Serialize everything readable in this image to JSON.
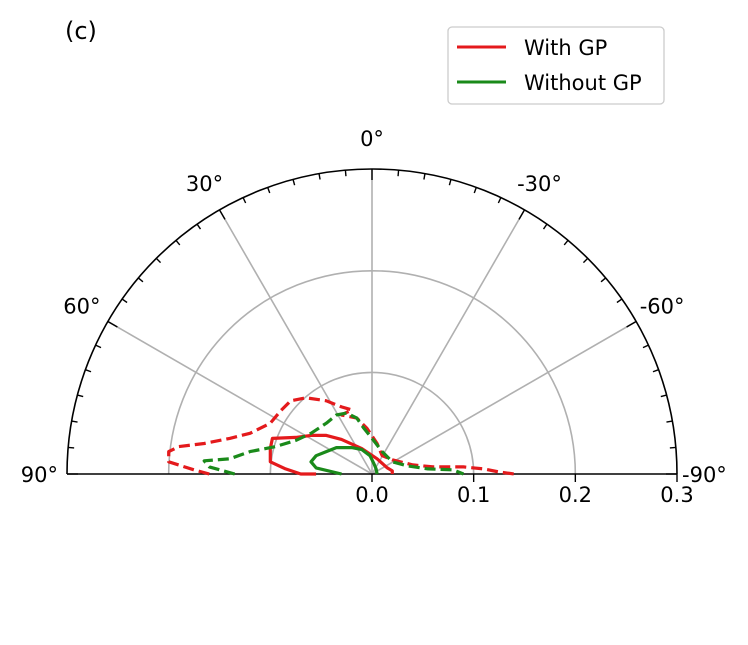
{
  "panel_label": "(c)",
  "chart_data": {
    "type": "polar-line",
    "angle_unit": "degrees",
    "theta_range": [
      90,
      -90
    ],
    "theta_zero": "top",
    "r_range": [
      0,
      0.3
    ],
    "r_ticks": [
      0.0,
      0.1,
      0.2,
      0.3
    ],
    "r_tick_labels": [
      "0.0",
      "0.1",
      "0.2",
      "0.3"
    ],
    "theta_ticks": [
      90,
      60,
      30,
      0,
      -30,
      -60,
      -90
    ],
    "theta_tick_labels": [
      "90°",
      "60°",
      "30°",
      "0°",
      "-30°",
      "-60°",
      "-90°"
    ],
    "grid": true,
    "legend_position": "top-right",
    "legend": [
      {
        "label": "With GP",
        "color": "#e41a1c"
      },
      {
        "label": "Without GP",
        "color": "#1a8a1a"
      }
    ],
    "series": [
      {
        "name": "With GP",
        "style": "solid",
        "color": "#e41a1c",
        "points": [
          [
            -0.055,
            0.0
          ],
          [
            -0.07,
            0.0
          ],
          [
            -0.085,
            0.005
          ],
          [
            -0.1,
            0.012
          ],
          [
            -0.1,
            0.025
          ],
          [
            -0.098,
            0.035
          ],
          [
            -0.075,
            0.036
          ],
          [
            -0.06,
            0.038
          ],
          [
            -0.045,
            0.038
          ],
          [
            -0.03,
            0.034
          ],
          [
            -0.01,
            0.025
          ],
          [
            0.005,
            0.015
          ],
          [
            0.015,
            0.006
          ],
          [
            0.02,
            0.003
          ],
          [
            0.02,
            0.0
          ]
        ]
      },
      {
        "name": "With GP",
        "style": "dashed",
        "color": "#e41a1c",
        "points": [
          [
            -0.16,
            0.0
          ],
          [
            -0.175,
            0.004
          ],
          [
            -0.2,
            0.012
          ],
          [
            -0.2,
            0.022
          ],
          [
            -0.19,
            0.027
          ],
          [
            -0.165,
            0.03
          ],
          [
            -0.14,
            0.035
          ],
          [
            -0.12,
            0.04
          ],
          [
            -0.1,
            0.05
          ],
          [
            -0.09,
            0.062
          ],
          [
            -0.08,
            0.072
          ],
          [
            -0.065,
            0.075
          ],
          [
            -0.045,
            0.072
          ],
          [
            -0.03,
            0.066
          ],
          [
            -0.02,
            0.063
          ],
          [
            -0.03,
            0.058
          ],
          [
            -0.015,
            0.055
          ],
          [
            -0.005,
            0.045
          ],
          [
            0.005,
            0.03
          ],
          [
            0.01,
            0.018
          ],
          [
            0.02,
            0.014
          ],
          [
            0.04,
            0.009
          ],
          [
            0.06,
            0.007
          ],
          [
            0.09,
            0.007
          ],
          [
            0.11,
            0.005
          ],
          [
            0.125,
            0.002
          ],
          [
            0.14,
            0.0
          ]
        ]
      },
      {
        "name": "Without GP",
        "style": "solid",
        "color": "#1a8a1a",
        "points": [
          [
            -0.03,
            0.0
          ],
          [
            -0.055,
            0.006
          ],
          [
            -0.06,
            0.012
          ],
          [
            -0.055,
            0.018
          ],
          [
            -0.045,
            0.022
          ],
          [
            -0.035,
            0.026
          ],
          [
            -0.02,
            0.026
          ],
          [
            -0.01,
            0.024
          ],
          [
            -0.002,
            0.018
          ],
          [
            0.002,
            0.01
          ],
          [
            0.004,
            0.005
          ],
          [
            0.005,
            0.0
          ]
        ]
      },
      {
        "name": "Without GP",
        "style": "dashed",
        "color": "#1a8a1a",
        "points": [
          [
            -0.135,
            0.0
          ],
          [
            -0.16,
            0.007
          ],
          [
            -0.165,
            0.013
          ],
          [
            -0.14,
            0.015
          ],
          [
            -0.12,
            0.022
          ],
          [
            -0.095,
            0.027
          ],
          [
            -0.075,
            0.033
          ],
          [
            -0.06,
            0.04
          ],
          [
            -0.045,
            0.05
          ],
          [
            -0.035,
            0.058
          ],
          [
            -0.025,
            0.06
          ],
          [
            -0.015,
            0.055
          ],
          [
            -0.008,
            0.045
          ],
          [
            0.0,
            0.035
          ],
          [
            0.01,
            0.022
          ],
          [
            0.02,
            0.012
          ],
          [
            0.035,
            0.008
          ],
          [
            0.055,
            0.005
          ],
          [
            0.08,
            0.004
          ],
          [
            0.09,
            0.0
          ]
        ]
      }
    ]
  }
}
